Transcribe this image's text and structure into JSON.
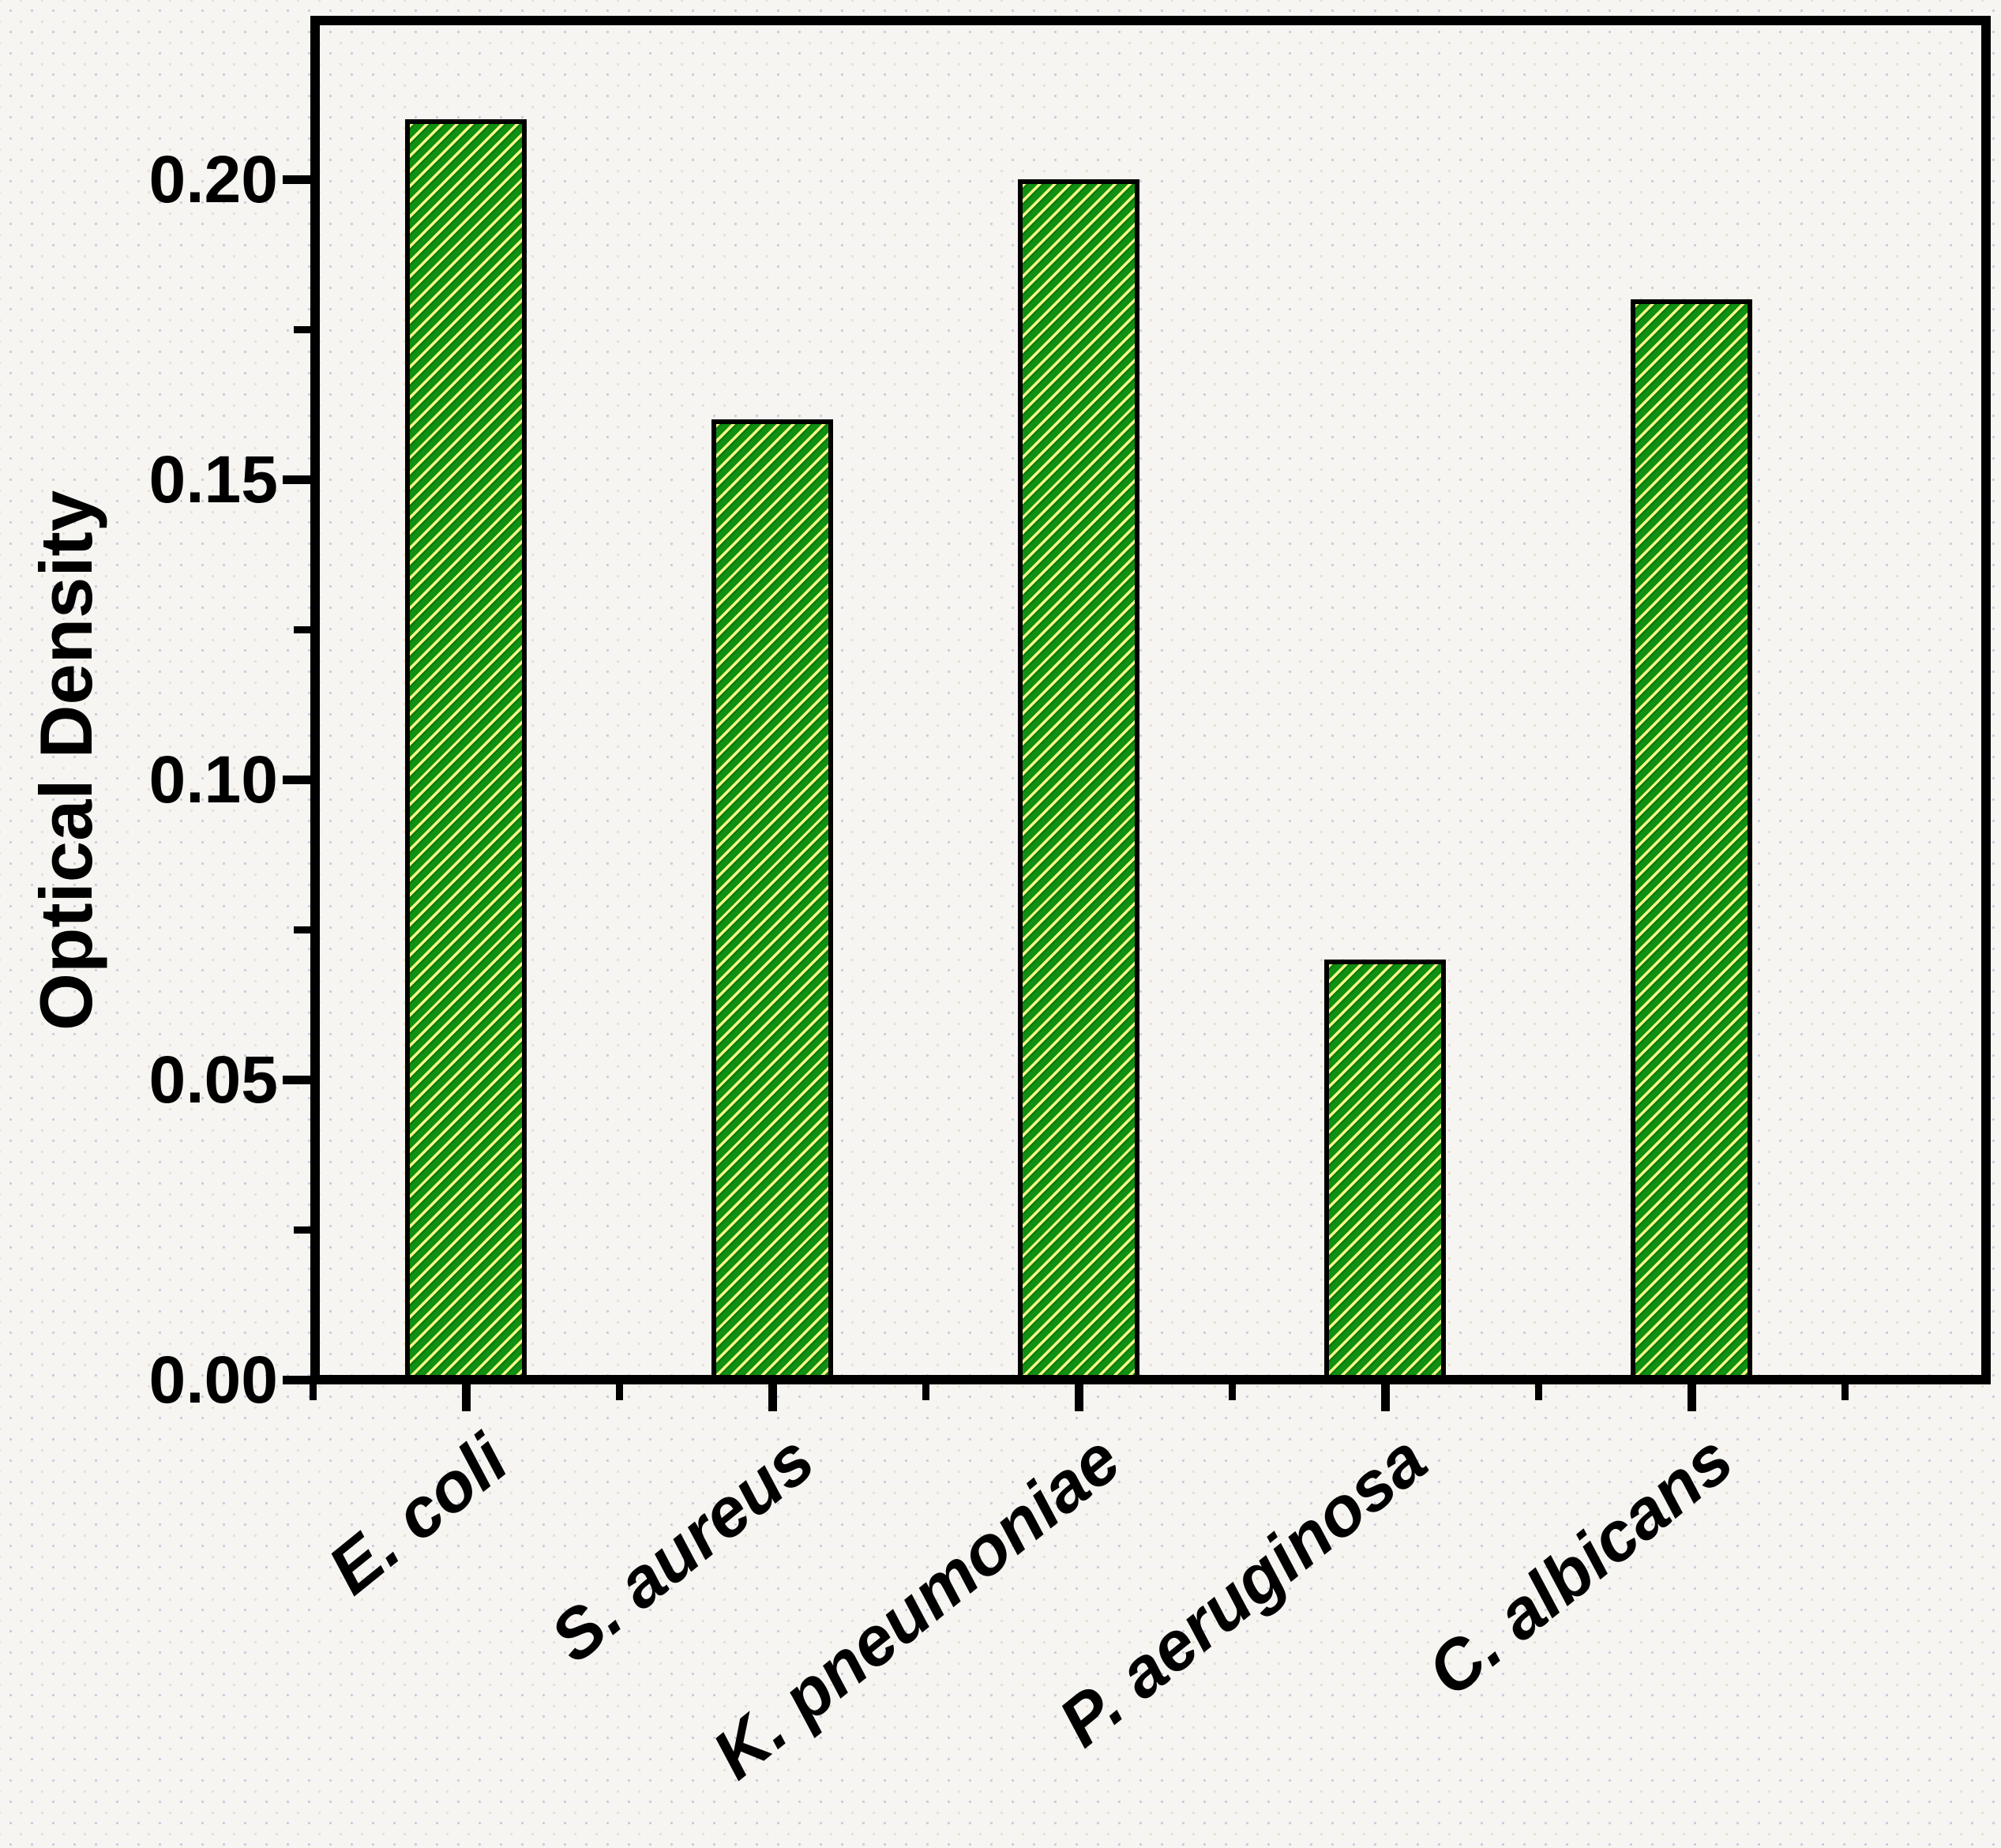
{
  "chart_data": {
    "type": "bar",
    "title": "",
    "categories": [
      "E. coli",
      "S. aureus",
      "K. pneumoniae",
      "P. aeruginosa",
      "C. albicans"
    ],
    "values": [
      0.21,
      0.16,
      0.2,
      0.07,
      0.18
    ],
    "series": [
      {
        "name": "Optical Density",
        "values": [
          0.21,
          0.16,
          0.2,
          0.07,
          0.18
        ]
      }
    ],
    "xlabel": "",
    "ylabel": "Optical Density",
    "ylim": [
      0.0,
      0.2267
    ],
    "ytick_values": [
      0.0,
      0.05,
      0.1,
      0.15,
      0.2
    ],
    "ytick_labels": [
      "0.00",
      "0.05",
      "0.10",
      "0.15",
      "0.20"
    ],
    "minor_ytick_values": [
      0.025,
      0.075,
      0.125,
      0.175
    ],
    "grid": false,
    "legend": false,
    "xtick_label_rotation_deg": 39,
    "bar_style": {
      "fill_color": "#0f9012",
      "hatch_color": "#f6f887",
      "hatch_pattern": "forward-diagonal",
      "outline_color": "#000000"
    },
    "axis_color": "#000000",
    "background_color": "#f6f5f1"
  }
}
